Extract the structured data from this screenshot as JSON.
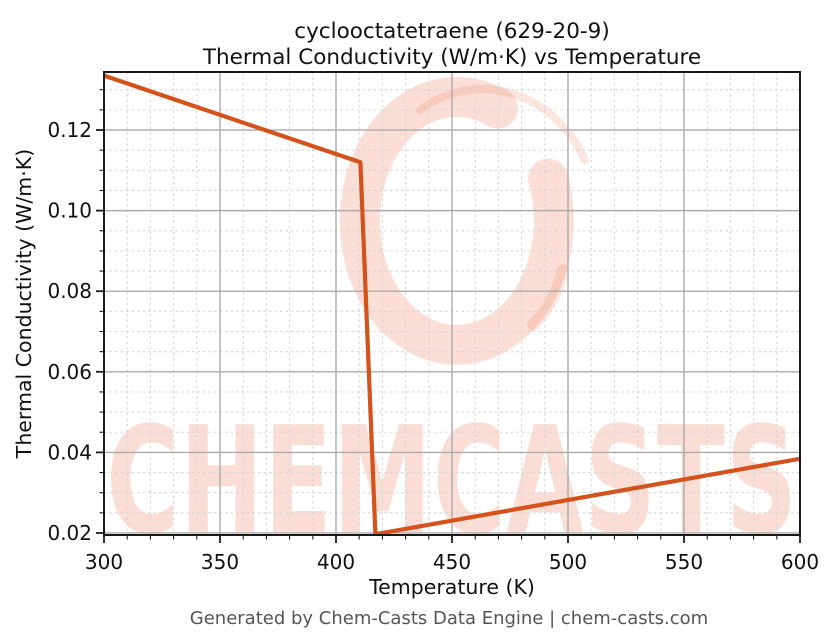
{
  "chart": {
    "background": "#ffffff"
  },
  "footer": {
    "text": "Generated by Chem-Casts Data Engine | chem-casts.com"
  },
  "watermark": {
    "text": "CHEMCASTS",
    "logo": "brush-crescent-ring",
    "color": "#ec6e46",
    "opacity": 0.22
  },
  "colors": {
    "line": "#d4521c",
    "spine": "#1a1a1a",
    "grid_major": "#ababab",
    "grid_minor": "#d6d6d6",
    "tick_label": "#111111",
    "title_text": "#111111",
    "footer_text": "#555555",
    "watermark": "#ec6e46",
    "background": "#ffffff"
  },
  "chart_data": {
    "type": "line",
    "title_lines": [
      "cyclooctatetraene (629-20-9)",
      "Thermal Conductivity (W/m·K) vs Temperature"
    ],
    "xlabel": "Temperature (K)",
    "ylabel": "Thermal Conductivity (W/m·K)",
    "xlim": [
      300,
      600
    ],
    "ylim": [
      0.0195,
      0.1344
    ],
    "xticks": [
      300,
      350,
      400,
      450,
      500,
      550,
      600
    ],
    "yticks": [
      "0.02",
      "0.04",
      "0.06",
      "0.08",
      "0.10",
      "0.12"
    ],
    "x_minor_step": 10,
    "y_minor_step": 0.005,
    "grid": {
      "major": true,
      "minor": true
    },
    "legend": false,
    "series": [
      {
        "name": "thermal conductivity",
        "color": "#d4521c",
        "x": [
          300,
          410.5,
          417,
          600
        ],
        "y": [
          0.1335,
          0.112,
          0.0197,
          0.0384
        ]
      }
    ]
  }
}
